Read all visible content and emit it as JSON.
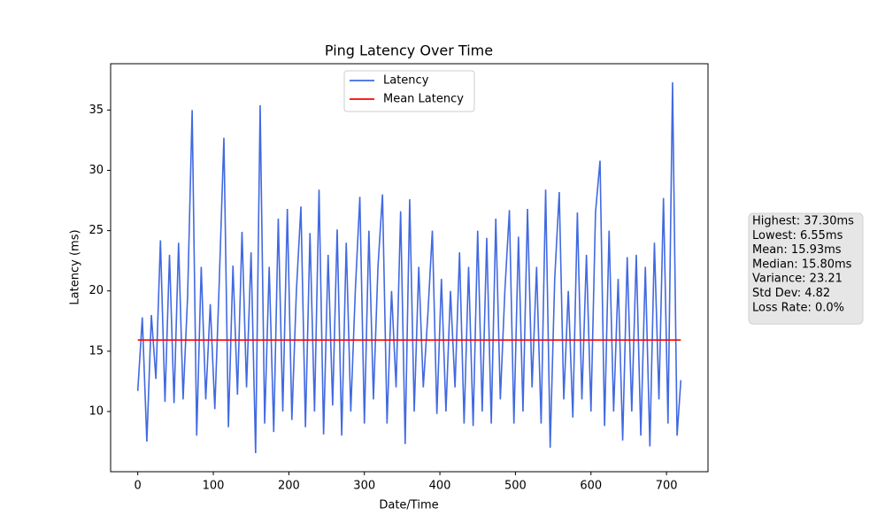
{
  "chart_data": {
    "type": "line",
    "title": "Ping Latency Over Time",
    "xlabel": "Date/Time",
    "ylabel": "Latency (ms)",
    "xlim": [
      -35.95,
      754.95
    ],
    "ylim": [
      5.01,
      38.84
    ],
    "xticks": [
      0,
      100,
      200,
      300,
      400,
      500,
      600,
      700
    ],
    "yticks": [
      10,
      15,
      20,
      25,
      30,
      35
    ],
    "legend": "upper center",
    "series": [
      {
        "name": "Latency",
        "color": "#4169e1",
        "x": [
          0,
          6,
          12,
          18,
          24,
          30,
          36,
          42,
          48,
          54,
          60,
          66,
          72,
          78,
          84,
          90,
          96,
          102,
          108,
          114,
          120,
          126,
          132,
          138,
          144,
          150,
          156,
          162,
          168,
          174,
          180,
          186,
          192,
          198,
          204,
          210,
          216,
          222,
          228,
          234,
          240,
          246,
          252,
          258,
          264,
          270,
          276,
          282,
          288,
          294,
          300,
          306,
          312,
          318,
          324,
          330,
          336,
          342,
          348,
          354,
          360,
          366,
          372,
          378,
          384,
          390,
          396,
          402,
          408,
          414,
          420,
          426,
          432,
          438,
          444,
          450,
          456,
          462,
          468,
          474,
          480,
          486,
          492,
          498,
          504,
          510,
          516,
          522,
          528,
          534,
          540,
          546,
          552,
          558,
          564,
          570,
          576,
          582,
          588,
          594,
          600,
          606,
          612,
          618,
          624,
          630,
          636,
          642,
          648,
          654,
          660,
          666,
          672,
          678,
          684,
          690,
          696,
          702,
          708,
          714,
          719
        ],
        "values": [
          11.7,
          17.8,
          7.5,
          18.0,
          12.7,
          24.2,
          10.8,
          23.0,
          10.7,
          24.0,
          11.0,
          19.6,
          35.0,
          8.0,
          22.0,
          11.0,
          18.9,
          10.2,
          21.0,
          32.7,
          8.7,
          22.1,
          11.4,
          24.9,
          12.0,
          23.2,
          6.55,
          35.4,
          9.0,
          22.0,
          8.3,
          26.0,
          10.0,
          26.8,
          9.3,
          20.0,
          27.0,
          8.7,
          24.8,
          10.0,
          28.4,
          8.1,
          23.0,
          10.5,
          25.1,
          8.0,
          24.0,
          10.0,
          20.0,
          27.8,
          9.0,
          25.0,
          11.0,
          22.0,
          28.0,
          9.0,
          20.0,
          12.0,
          26.6,
          7.3,
          27.6,
          10.0,
          22.0,
          12.0,
          18.0,
          25.0,
          9.8,
          21.0,
          10.0,
          20.0,
          12.0,
          23.2,
          9.0,
          22.0,
          8.8,
          25.0,
          10.0,
          24.4,
          9.0,
          26.0,
          11.0,
          20.0,
          26.7,
          9.0,
          24.5,
          10.0,
          26.8,
          12.0,
          22.0,
          9.0,
          28.4,
          7.0,
          21.0,
          28.2,
          11.0,
          20.0,
          9.5,
          26.5,
          11.0,
          23.0,
          10.0,
          26.5,
          30.8,
          8.8,
          25.0,
          10.0,
          21.0,
          7.6,
          22.8,
          10.0,
          23.0,
          8.0,
          22.0,
          7.1,
          24.0,
          11.0,
          27.7,
          9.0,
          37.3,
          8.0,
          12.6
        ]
      },
      {
        "name": "Mean Latency",
        "color": "#ff0000",
        "x": [
          0,
          719
        ],
        "values": [
          15.93,
          15.93
        ]
      }
    ],
    "stats_box": [
      "Highest: 37.30ms",
      "Lowest: 6.55ms",
      "Mean: 15.93ms",
      "Median: 15.80ms",
      "Variance: 23.21",
      "Std Dev: 4.82",
      "Loss Rate: 0.0%"
    ]
  }
}
